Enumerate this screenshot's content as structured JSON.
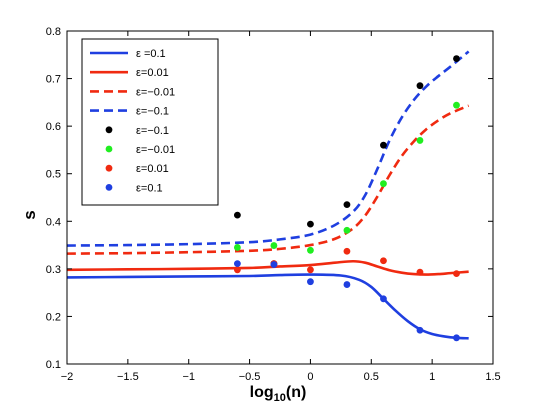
{
  "chart_data": {
    "type": "line",
    "xlabel": {
      "base": "log",
      "sub": "10",
      "arg": "(n)"
    },
    "ylabel": "s",
    "xlim": [
      -2,
      1.5
    ],
    "ylim": [
      0.1,
      0.8
    ],
    "xticks": [
      "-2",
      "-1.5",
      "-1",
      "-0.5",
      "0",
      "0.5",
      "1",
      "1.5"
    ],
    "yticks": [
      "0.1",
      "0.2",
      "0.3",
      "0.4",
      "0.5",
      "0.6",
      "0.7",
      "0.8"
    ],
    "grid": false,
    "legend_position": "top-left",
    "series": [
      {
        "name": "ε =0.1",
        "kind": "line",
        "dash": "solid",
        "color": "#1f3fe0",
        "x": [
          -2,
          -1.5,
          -1,
          -0.5,
          -0.25,
          0,
          0.25,
          0.4,
          0.5,
          0.6,
          0.7,
          0.8,
          0.9,
          1.0,
          1.1,
          1.2,
          1.3
        ],
        "y": [
          0.282,
          0.283,
          0.284,
          0.285,
          0.287,
          0.288,
          0.286,
          0.277,
          0.262,
          0.237,
          0.212,
          0.19,
          0.173,
          0.163,
          0.158,
          0.155,
          0.154
        ]
      },
      {
        "name": "ε=0.01",
        "kind": "line",
        "dash": "solid",
        "color": "#f02a10",
        "x": [
          -2,
          -1.5,
          -1,
          -0.5,
          -0.25,
          0,
          0.2,
          0.35,
          0.45,
          0.55,
          0.65,
          0.75,
          0.85,
          0.95,
          1.05,
          1.15,
          1.3
        ],
        "y": [
          0.298,
          0.299,
          0.3,
          0.302,
          0.305,
          0.308,
          0.313,
          0.316,
          0.313,
          0.305,
          0.297,
          0.292,
          0.289,
          0.288,
          0.289,
          0.291,
          0.294
        ]
      },
      {
        "name": "ε=−0.01",
        "kind": "line",
        "dash": "dashed",
        "color": "#f02a10",
        "x": [
          -2,
          -1.5,
          -1,
          -0.5,
          -0.25,
          0,
          0.2,
          0.35,
          0.45,
          0.55,
          0.65,
          0.75,
          0.85,
          0.95,
          1.05,
          1.15,
          1.3
        ],
        "y": [
          0.332,
          0.333,
          0.335,
          0.338,
          0.342,
          0.35,
          0.363,
          0.385,
          0.412,
          0.452,
          0.497,
          0.537,
          0.568,
          0.593,
          0.612,
          0.627,
          0.643
        ]
      },
      {
        "name": "ε=−0.1",
        "kind": "line",
        "dash": "dashed",
        "color": "#1f3fe0",
        "x": [
          -2,
          -1.5,
          -1,
          -0.5,
          -0.25,
          0,
          0.2,
          0.35,
          0.45,
          0.55,
          0.65,
          0.75,
          0.85,
          0.95,
          1.05,
          1.15,
          1.3
        ],
        "y": [
          0.349,
          0.35,
          0.352,
          0.356,
          0.362,
          0.372,
          0.392,
          0.42,
          0.455,
          0.51,
          0.57,
          0.618,
          0.655,
          0.683,
          0.705,
          0.725,
          0.757
        ]
      },
      {
        "name": "ε=−0.1",
        "kind": "points",
        "color": "#000000",
        "x": [
          -0.6,
          -0.3,
          0,
          0.3,
          0.6,
          0.9,
          1.2
        ],
        "y": [
          0.413,
          0.311,
          0.394,
          0.435,
          0.56,
          0.685,
          0.742
        ]
      },
      {
        "name": "ε=−0.01",
        "kind": "points",
        "color": "#20ee20",
        "x": [
          -0.6,
          -0.3,
          0,
          0.3,
          0.6,
          0.9,
          1.2
        ],
        "y": [
          0.345,
          0.349,
          0.339,
          0.381,
          0.479,
          0.57,
          0.644
        ]
      },
      {
        "name": "ε=0.01",
        "kind": "points",
        "color": "#f02a10",
        "x": [
          -0.6,
          -0.3,
          0,
          0.3,
          0.6,
          0.9,
          1.2
        ],
        "y": [
          0.298,
          0.311,
          0.298,
          0.337,
          0.317,
          0.293,
          0.29
        ]
      },
      {
        "name": "ε=0.1",
        "kind": "points",
        "color": "#1f3fe0",
        "x": [
          -0.6,
          -0.3,
          0,
          0.3,
          0.6,
          0.9,
          1.2
        ],
        "y": [
          0.311,
          0.309,
          0.273,
          0.267,
          0.237,
          0.171,
          0.155
        ]
      }
    ]
  }
}
